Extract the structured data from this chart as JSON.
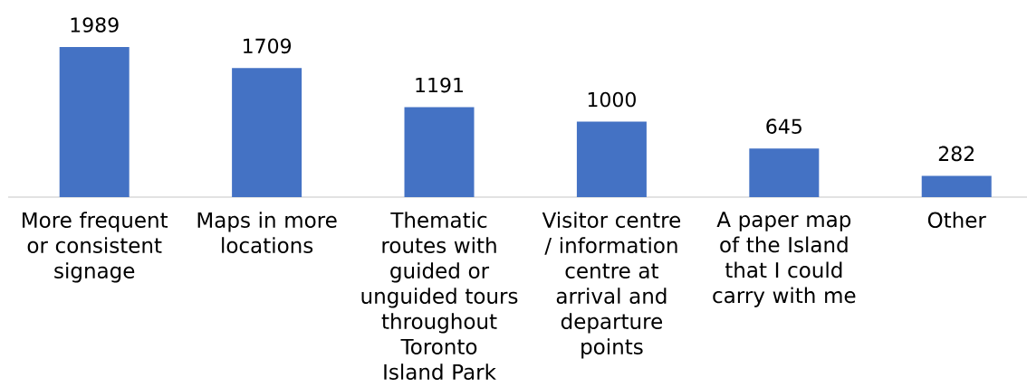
{
  "chart_data": {
    "type": "bar",
    "categories": [
      "More frequent or consistent signage",
      "Maps in more locations",
      "Thematic routes with guided or unguided tours throughout Toronto Island Park",
      "Visitor centre / information centre at arrival and departure points",
      "A paper map of the Island that I could carry with me",
      "Other"
    ],
    "values": [
      1989,
      1709,
      1191,
      1000,
      645,
      282
    ],
    "color": "#4472c4",
    "data_labels": true
  }
}
